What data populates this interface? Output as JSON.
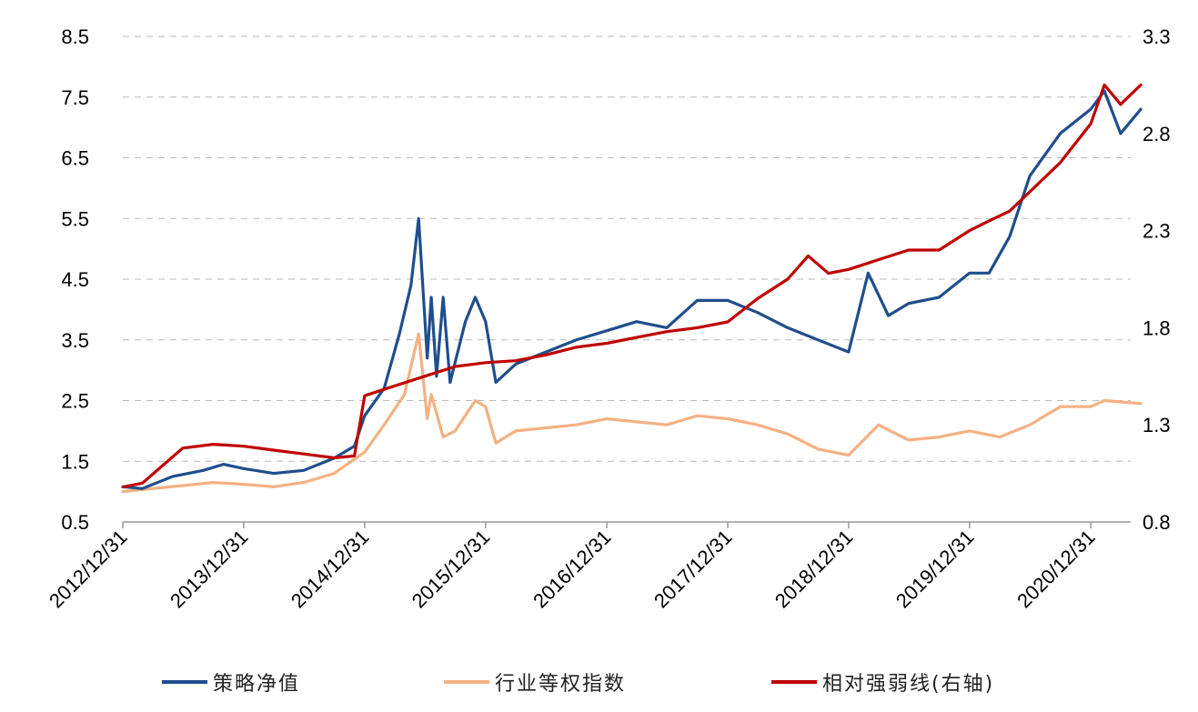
{
  "chart_data": {
    "type": "line",
    "left_axis": {
      "ylim": [
        0.5,
        8.5
      ],
      "ticks": [
        "0.5",
        "1.5",
        "2.5",
        "3.5",
        "4.5",
        "5.5",
        "6.5",
        "7.5",
        "8.5"
      ]
    },
    "right_axis": {
      "ylim": [
        0.8,
        3.3
      ],
      "ticks": [
        "0.8",
        "1.3",
        "1.8",
        "2.3",
        "2.8",
        "3.3"
      ]
    },
    "x_tick_labels": [
      "2012/12/31",
      "2013/12/31",
      "2014/12/31",
      "2015/12/31",
      "2016/12/31",
      "2017/12/31",
      "2018/12/31",
      "2019/12/31",
      "2020/12/31"
    ],
    "grid": "horizontal-dashed",
    "legend_position": "bottom",
    "series": [
      {
        "name": "策略净值",
        "axis": "left",
        "color": "#1f4e8c",
        "points": [
          [
            "2012/12/31",
            1.08
          ],
          [
            "2013/02/28",
            1.05
          ],
          [
            "2013/05/31",
            1.25
          ],
          [
            "2013/08/31",
            1.35
          ],
          [
            "2013/10/31",
            1.45
          ],
          [
            "2013/12/31",
            1.38
          ],
          [
            "2014/03/31",
            1.3
          ],
          [
            "2014/06/30",
            1.35
          ],
          [
            "2014/09/30",
            1.55
          ],
          [
            "2014/11/30",
            1.75
          ],
          [
            "2014/12/31",
            2.25
          ],
          [
            "2015/02/28",
            2.7
          ],
          [
            "2015/04/15",
            3.6
          ],
          [
            "2015/05/20",
            4.4
          ],
          [
            "2015/06/12",
            5.5
          ],
          [
            "2015/07/08",
            3.2
          ],
          [
            "2015/07/20",
            4.2
          ],
          [
            "2015/08/05",
            2.9
          ],
          [
            "2015/08/25",
            4.2
          ],
          [
            "2015/09/15",
            2.8
          ],
          [
            "2015/10/31",
            3.8
          ],
          [
            "2015/11/30",
            4.2
          ],
          [
            "2015/12/31",
            3.8
          ],
          [
            "2016/01/31",
            2.8
          ],
          [
            "2016/03/31",
            3.1
          ],
          [
            "2016/06/30",
            3.3
          ],
          [
            "2016/09/30",
            3.5
          ],
          [
            "2016/12/31",
            3.65
          ],
          [
            "2017/03/31",
            3.8
          ],
          [
            "2017/06/30",
            3.7
          ],
          [
            "2017/09/30",
            4.15
          ],
          [
            "2017/12/31",
            4.15
          ],
          [
            "2018/03/31",
            3.95
          ],
          [
            "2018/06/30",
            3.7
          ],
          [
            "2018/09/30",
            3.5
          ],
          [
            "2018/12/31",
            3.3
          ],
          [
            "2019/02/28",
            4.6
          ],
          [
            "2019/04/30",
            3.9
          ],
          [
            "2019/06/30",
            4.1
          ],
          [
            "2019/09/30",
            4.2
          ],
          [
            "2019/12/31",
            4.6
          ],
          [
            "2020/02/28",
            4.6
          ],
          [
            "2020/04/30",
            5.2
          ],
          [
            "2020/06/30",
            6.2
          ],
          [
            "2020/09/30",
            6.9
          ],
          [
            "2020/12/31",
            7.3
          ],
          [
            "2021/02/10",
            7.6
          ],
          [
            "2021/03/31",
            6.9
          ],
          [
            "2021/05/31",
            7.3
          ]
        ]
      },
      {
        "name": "行业等权指数",
        "axis": "left",
        "color": "#f4b183",
        "points": [
          [
            "2012/12/31",
            1.0
          ],
          [
            "2013/03/31",
            1.05
          ],
          [
            "2013/06/30",
            1.1
          ],
          [
            "2013/09/30",
            1.15
          ],
          [
            "2013/12/31",
            1.12
          ],
          [
            "2014/03/31",
            1.08
          ],
          [
            "2014/06/30",
            1.15
          ],
          [
            "2014/09/30",
            1.3
          ],
          [
            "2014/12/31",
            1.65
          ],
          [
            "2015/02/28",
            2.1
          ],
          [
            "2015/04/30",
            2.6
          ],
          [
            "2015/06/12",
            3.6
          ],
          [
            "2015/07/08",
            2.2
          ],
          [
            "2015/07/20",
            2.6
          ],
          [
            "2015/08/25",
            1.9
          ],
          [
            "2015/09/30",
            2.0
          ],
          [
            "2015/11/30",
            2.5
          ],
          [
            "2015/12/31",
            2.4
          ],
          [
            "2016/01/31",
            1.8
          ],
          [
            "2016/03/31",
            2.0
          ],
          [
            "2016/06/30",
            2.05
          ],
          [
            "2016/09/30",
            2.1
          ],
          [
            "2016/12/31",
            2.2
          ],
          [
            "2017/03/31",
            2.15
          ],
          [
            "2017/06/30",
            2.1
          ],
          [
            "2017/09/30",
            2.25
          ],
          [
            "2017/12/31",
            2.2
          ],
          [
            "2018/03/31",
            2.1
          ],
          [
            "2018/06/30",
            1.95
          ],
          [
            "2018/09/30",
            1.7
          ],
          [
            "2018/12/31",
            1.6
          ],
          [
            "2019/03/31",
            2.1
          ],
          [
            "2019/06/30",
            1.85
          ],
          [
            "2019/09/30",
            1.9
          ],
          [
            "2019/12/31",
            2.0
          ],
          [
            "2020/03/31",
            1.9
          ],
          [
            "2020/06/30",
            2.1
          ],
          [
            "2020/09/30",
            2.4
          ],
          [
            "2020/12/31",
            2.4
          ],
          [
            "2021/02/10",
            2.5
          ],
          [
            "2021/05/31",
            2.45
          ]
        ]
      },
      {
        "name": "相对强弱线(右轴)",
        "axis": "right",
        "color": "#c00000",
        "points": [
          [
            "2012/12/31",
            0.98
          ],
          [
            "2013/02/28",
            1.0
          ],
          [
            "2013/06/30",
            1.18
          ],
          [
            "2013/09/30",
            1.2
          ],
          [
            "2013/12/31",
            1.19
          ],
          [
            "2014/03/31",
            1.17
          ],
          [
            "2014/06/30",
            1.15
          ],
          [
            "2014/09/30",
            1.13
          ],
          [
            "2014/11/30",
            1.14
          ],
          [
            "2014/12/31",
            1.45
          ],
          [
            "2015/03/31",
            1.5
          ],
          [
            "2015/06/30",
            1.55
          ],
          [
            "2015/09/30",
            1.6
          ],
          [
            "2015/12/31",
            1.62
          ],
          [
            "2016/03/31",
            1.63
          ],
          [
            "2016/06/30",
            1.66
          ],
          [
            "2016/09/30",
            1.7
          ],
          [
            "2016/12/31",
            1.72
          ],
          [
            "2017/03/31",
            1.75
          ],
          [
            "2017/06/30",
            1.78
          ],
          [
            "2017/09/30",
            1.8
          ],
          [
            "2017/12/31",
            1.83
          ],
          [
            "2018/03/31",
            1.95
          ],
          [
            "2018/06/30",
            2.05
          ],
          [
            "2018/08/31",
            2.17
          ],
          [
            "2018/10/31",
            2.08
          ],
          [
            "2018/12/31",
            2.1
          ],
          [
            "2019/03/31",
            2.15
          ],
          [
            "2019/06/30",
            2.2
          ],
          [
            "2019/09/30",
            2.2
          ],
          [
            "2019/12/31",
            2.3
          ],
          [
            "2020/02/28",
            2.35
          ],
          [
            "2020/04/30",
            2.4
          ],
          [
            "2020/06/30",
            2.5
          ],
          [
            "2020/09/30",
            2.65
          ],
          [
            "2020/12/31",
            2.85
          ],
          [
            "2021/02/10",
            3.05
          ],
          [
            "2021/03/31",
            2.95
          ],
          [
            "2021/05/31",
            3.05
          ]
        ]
      }
    ]
  }
}
